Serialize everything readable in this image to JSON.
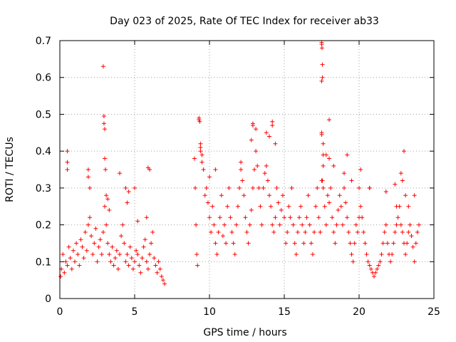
{
  "chart_data": {
    "type": "scatter",
    "title": "Day 023 of 2025, Rate Of TEC Index for receiver ab33",
    "xlabel": "GPS time / hours",
    "ylabel": "ROTI / TECUs",
    "xlim": [
      0,
      25
    ],
    "ylim": [
      0,
      0.7
    ],
    "xticks": [
      0,
      5,
      10,
      15,
      20,
      25
    ],
    "yticks": [
      0,
      0.1,
      0.2,
      0.3,
      0.4,
      0.5,
      0.6,
      0.7
    ],
    "grid": true,
    "marker": "+",
    "color": "#ff0000",
    "series": [
      {
        "x": [
          0.05,
          0.1,
          0.2,
          0.3,
          0.4,
          0.5,
          0.6,
          0.7,
          0.8,
          0.9,
          1.0,
          1.1,
          1.2,
          1.3,
          1.4,
          1.5,
          1.6,
          1.7,
          1.8,
          1.9,
          2.0,
          2.1,
          2.2,
          2.3,
          2.4,
          2.5,
          2.6,
          2.7,
          2.8,
          2.9,
          3.0,
          3.1,
          3.2,
          3.3,
          3.4,
          3.5,
          3.6,
          3.7,
          3.8,
          3.9,
          4.0,
          4.1,
          4.2,
          4.3,
          4.4,
          4.5,
          4.6,
          4.7,
          4.8,
          4.9,
          5.0,
          5.1,
          5.2,
          5.3,
          5.4,
          5.5,
          5.6,
          5.7,
          5.8,
          5.9,
          6.0,
          6.1,
          6.2,
          6.3,
          6.4,
          6.5,
          6.6,
          6.7,
          6.8,
          6.9,
          7.0,
          0.5,
          0.5,
          0.5,
          1.9,
          1.9,
          2.0,
          2.9,
          2.95,
          2.95,
          3.0,
          3.0,
          3.05,
          3.1,
          3.2,
          3.3,
          4.0,
          4.4,
          4.5,
          4.6,
          5.0,
          5.2,
          5.8,
          5.9,
          6.0,
          9.0,
          9.05,
          9.1,
          9.15,
          9.2,
          9.3,
          9.4,
          9.5,
          9.6,
          9.7,
          9.8,
          9.9,
          10.0,
          10.1,
          10.2,
          10.3,
          10.4,
          10.5,
          10.6,
          10.7,
          10.8,
          10.9,
          11.0,
          11.1,
          11.2,
          11.3,
          11.4,
          11.5,
          11.6,
          11.7,
          11.8,
          11.9,
          12.0,
          12.1,
          12.2,
          12.3,
          12.4,
          12.5,
          12.6,
          12.7,
          12.8,
          12.9,
          13.0,
          13.1,
          13.2,
          13.3,
          13.4,
          13.5,
          13.6,
          13.7,
          13.8,
          13.9,
          14.0,
          14.1,
          14.2,
          14.3,
          14.4,
          14.5,
          14.6,
          14.7,
          14.8,
          14.9,
          15.0,
          9.3,
          9.35,
          9.4,
          9.4,
          9.5,
          10.0,
          10.4,
          12.1,
          12.8,
          12.9,
          12.9,
          13.1,
          13.8,
          14.0,
          14.2,
          14.2,
          14.4,
          15.1,
          15.2,
          15.3,
          15.4,
          15.5,
          15.6,
          15.7,
          15.8,
          15.9,
          16.0,
          16.1,
          16.2,
          16.3,
          16.4,
          16.5,
          16.6,
          16.7,
          16.8,
          16.9,
          17.0,
          17.1,
          17.2,
          17.3,
          17.4,
          17.5,
          17.6,
          17.7,
          17.8,
          17.9,
          18.0,
          18.1,
          18.2,
          18.3,
          18.4,
          18.5,
          18.6,
          18.7,
          18.8,
          18.9,
          19.0,
          19.1,
          19.2,
          19.3,
          19.4,
          19.5,
          19.6,
          19.7,
          19.8,
          19.9,
          20.0,
          17.5,
          17.5,
          17.52,
          17.55,
          17.55,
          17.5,
          17.5,
          17.5,
          17.6,
          17.6,
          17.6,
          17.55,
          17.8,
          18.0,
          18.0,
          18.3,
          19.0,
          19.2,
          19.5,
          20.1,
          20.2,
          20.3,
          20.4,
          20.5,
          20.6,
          20.7,
          20.8,
          20.9,
          21.0,
          21.1,
          21.2,
          21.3,
          21.4,
          21.5,
          21.6,
          21.7,
          21.8,
          21.9,
          22.0,
          22.1,
          22.2,
          22.3,
          22.4,
          22.5,
          22.6,
          22.7,
          22.8,
          22.9,
          23.0,
          23.1,
          23.2,
          23.3,
          23.4,
          23.5,
          23.6,
          23.7,
          23.8,
          23.9,
          24.0,
          20.0,
          20.1,
          20.7,
          20.7,
          21.8,
          22.4,
          22.5,
          22.8,
          22.9,
          23.0,
          23.1,
          23.3,
          23.7
        ],
        "y": [
          0.06,
          0.08,
          0.12,
          0.07,
          0.1,
          0.09,
          0.14,
          0.11,
          0.08,
          0.13,
          0.1,
          0.15,
          0.12,
          0.09,
          0.16,
          0.14,
          0.11,
          0.18,
          0.13,
          0.2,
          0.22,
          0.17,
          0.12,
          0.15,
          0.19,
          0.1,
          0.14,
          0.16,
          0.12,
          0.18,
          0.25,
          0.2,
          0.15,
          0.12,
          0.1,
          0.14,
          0.09,
          0.11,
          0.13,
          0.08,
          0.12,
          0.17,
          0.2,
          0.15,
          0.1,
          0.12,
          0.09,
          0.14,
          0.11,
          0.08,
          0.1,
          0.13,
          0.12,
          0.09,
          0.07,
          0.11,
          0.14,
          0.16,
          0.1,
          0.08,
          0.12,
          0.15,
          0.18,
          0.11,
          0.09,
          0.07,
          0.1,
          0.08,
          0.06,
          0.05,
          0.04,
          0.4,
          0.37,
          0.35,
          0.35,
          0.33,
          0.3,
          0.63,
          0.495,
          0.475,
          0.46,
          0.38,
          0.35,
          0.28,
          0.27,
          0.24,
          0.34,
          0.3,
          0.26,
          0.29,
          0.3,
          0.21,
          0.22,
          0.355,
          0.35,
          0.38,
          0.3,
          0.2,
          0.12,
          0.09,
          0.485,
          0.42,
          0.39,
          0.35,
          0.28,
          0.3,
          0.26,
          0.22,
          0.18,
          0.25,
          0.2,
          0.15,
          0.12,
          0.18,
          0.22,
          0.28,
          0.17,
          0.2,
          0.15,
          0.25,
          0.3,
          0.22,
          0.18,
          0.15,
          0.12,
          0.2,
          0.25,
          0.3,
          0.35,
          0.32,
          0.28,
          0.22,
          0.18,
          0.15,
          0.2,
          0.24,
          0.3,
          0.35,
          0.4,
          0.36,
          0.3,
          0.25,
          0.2,
          0.3,
          0.34,
          0.36,
          0.32,
          0.28,
          0.25,
          0.2,
          0.18,
          0.22,
          0.3,
          0.26,
          0.2,
          0.24,
          0.28,
          0.22,
          0.49,
          0.48,
          0.41,
          0.4,
          0.37,
          0.33,
          0.35,
          0.37,
          0.43,
          0.47,
          0.475,
          0.46,
          0.45,
          0.44,
          0.48,
          0.47,
          0.42,
          0.15,
          0.18,
          0.25,
          0.22,
          0.3,
          0.2,
          0.15,
          0.12,
          0.18,
          0.22,
          0.25,
          0.2,
          0.15,
          0.18,
          0.22,
          0.28,
          0.2,
          0.15,
          0.12,
          0.18,
          0.25,
          0.3,
          0.22,
          0.18,
          0.32,
          0.3,
          0.25,
          0.2,
          0.28,
          0.26,
          0.3,
          0.22,
          0.18,
          0.15,
          0.2,
          0.24,
          0.28,
          0.25,
          0.2,
          0.3,
          0.26,
          0.22,
          0.18,
          0.15,
          0.12,
          0.1,
          0.15,
          0.2,
          0.18,
          0.22,
          0.69,
          0.695,
          0.68,
          0.635,
          0.6,
          0.59,
          0.45,
          0.445,
          0.42,
          0.39,
          0.36,
          0.32,
          0.39,
          0.485,
          0.38,
          0.36,
          0.34,
          0.39,
          0.32,
          0.25,
          0.22,
          0.18,
          0.15,
          0.12,
          0.1,
          0.09,
          0.08,
          0.07,
          0.06,
          0.07,
          0.08,
          0.09,
          0.1,
          0.12,
          0.15,
          0.18,
          0.2,
          0.15,
          0.12,
          0.1,
          0.12,
          0.15,
          0.18,
          0.2,
          0.22,
          0.25,
          0.2,
          0.18,
          0.15,
          0.12,
          0.15,
          0.18,
          0.2,
          0.17,
          0.14,
          0.1,
          0.15,
          0.18,
          0.2,
          0.3,
          0.35,
          0.3,
          0.3,
          0.29,
          0.31,
          0.25,
          0.34,
          0.32,
          0.4,
          0.28,
          0.25,
          0.28
        ]
      }
    ]
  }
}
